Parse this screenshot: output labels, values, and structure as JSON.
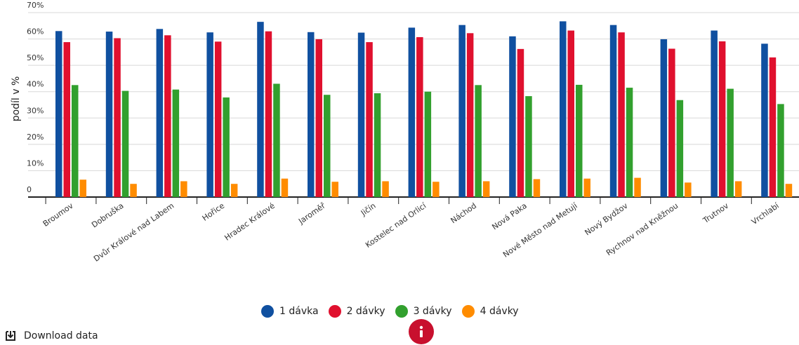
{
  "chart_data": {
    "type": "bar",
    "ylabel": "podíl v %",
    "ylim": [
      0,
      70
    ],
    "yticks": [
      "0",
      "10%",
      "20%",
      "30%",
      "40%",
      "50%",
      "60%",
      "70%"
    ],
    "grid": true,
    "legend_position": "bottom",
    "categories": [
      "Broumov",
      "Dobruška",
      "Dvůr Králové nad Labem",
      "Hořice",
      "Hradec Králové",
      "Jaroměř",
      "Jičín",
      "Kostelec nad Orlicí",
      "Náchod",
      "Nová Paka",
      "Nové Město nad Metují",
      "Nový Bydžov",
      "Rychnov nad Kněžnou",
      "Trutnov",
      "Vrchlabí"
    ],
    "series": [
      {
        "name": "1 dávka",
        "color": "#1050a0",
        "values": [
          63,
          62.8,
          63.8,
          62.5,
          66.5,
          62.6,
          62.4,
          64.3,
          65.3,
          61,
          66.7,
          65.3,
          59.9,
          63.2,
          58.2
        ]
      },
      {
        "name": "2 dávky",
        "color": "#e0102e",
        "values": [
          58.8,
          60.3,
          61.4,
          59,
          62.9,
          59.9,
          58.8,
          60.7,
          62.2,
          56.2,
          63.2,
          62.5,
          56.3,
          59.1,
          53
        ]
      },
      {
        "name": "3 dávky",
        "color": "#32a02e",
        "values": [
          42.5,
          40.3,
          40.8,
          37.8,
          43,
          38.8,
          39.4,
          40,
          42.5,
          38.3,
          42.6,
          41.5,
          36.8,
          41.1,
          35.3
        ]
      },
      {
        "name": "4 dávky",
        "color": "#ff8c00",
        "values": [
          6.6,
          5,
          6,
          5,
          7,
          5.8,
          6,
          5.8,
          6,
          6.8,
          7,
          7.3,
          5.5,
          6,
          5
        ]
      }
    ]
  },
  "actions": {
    "download_label": "Download data"
  },
  "colors": {
    "info_button": "#c8102e",
    "grid": "#d8d8d8",
    "axis": "#222222"
  }
}
